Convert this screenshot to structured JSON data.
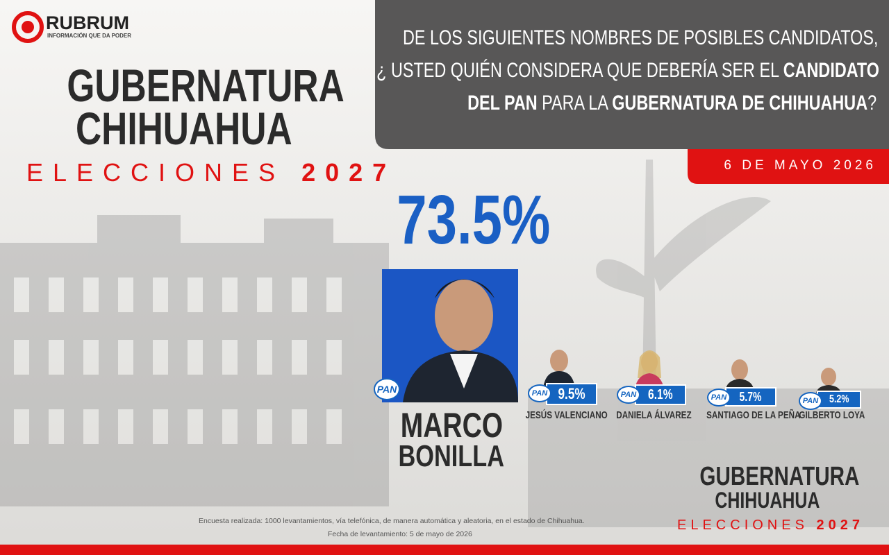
{
  "brand": {
    "name": "RUBRUM",
    "tagline": "INFORMACIÓN QUE DA PODER"
  },
  "header": {
    "title_line1": "GUBERNATURA",
    "title_line2": "CHIHUAHUA",
    "subtitle": "ELECCIONES",
    "year": "2027"
  },
  "question": {
    "segments": [
      "DE LOS SIGUIENTES NOMBRES DE POSIBLES CANDIDATOS,",
      "¿ USTED QUIÉN CONSIDERA QUE DEBERÍA SER EL",
      "CANDIDATO",
      "DEL PAN",
      "PARA LA",
      "GUBERNATURA DE CHIHUAHUA",
      "?"
    ]
  },
  "date": "6 DE MAYO 2026",
  "party": "PAN",
  "leader": {
    "percent": "73.5%",
    "name_line1": "MARCO",
    "name_line2": "BONILLA"
  },
  "candidates": [
    {
      "name": "JESÚS VALENCIANO",
      "percent": "9.5%"
    },
    {
      "name": "DANIELA ÁLVAREZ",
      "percent": "6.1%"
    },
    {
      "name": "SANTIAGO DE LA PEÑA",
      "percent": "5.7%"
    },
    {
      "name": "GILBERTO LOYA",
      "percent": "5.2%"
    }
  ],
  "footer": {
    "method": "Encuesta realizada: 1000 levantamientos, vía telefónica, de manera automática y aleatoria, en el estado de Chihuahua.",
    "fieldwork": "Fecha de levantamiento: 5 de mayo de 2026"
  }
}
